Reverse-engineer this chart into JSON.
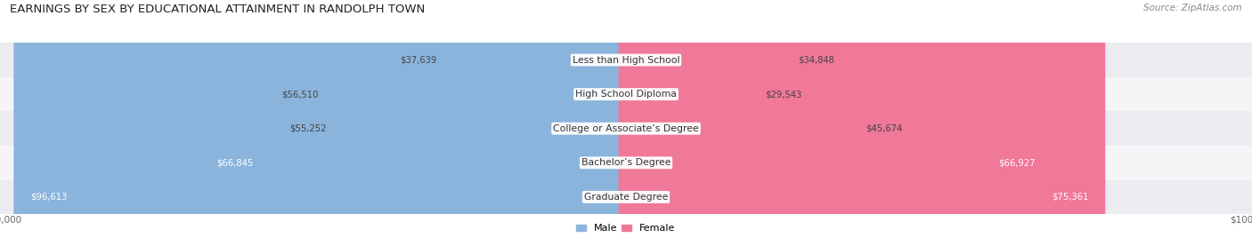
{
  "title": "EARNINGS BY SEX BY EDUCATIONAL ATTAINMENT IN RANDOLPH TOWN",
  "source": "Source: ZipAtlas.com",
  "categories": [
    "Less than High School",
    "High School Diploma",
    "College or Associate’s Degree",
    "Bachelor’s Degree",
    "Graduate Degree"
  ],
  "male_values": [
    37639,
    56510,
    55252,
    66845,
    96613
  ],
  "female_values": [
    34848,
    29543,
    45674,
    66927,
    75361
  ],
  "male_color": "#8ab4dc",
  "female_color": "#f07898",
  "max_value": 100000,
  "row_colors": [
    "#ebebf0",
    "#f5f5f8",
    "#ebebf0",
    "#f5f5f8",
    "#ebebf0"
  ],
  "title_fontsize": 9.5,
  "label_fontsize": 7.8,
  "value_fontsize": 7.2,
  "source_fontsize": 7.5
}
